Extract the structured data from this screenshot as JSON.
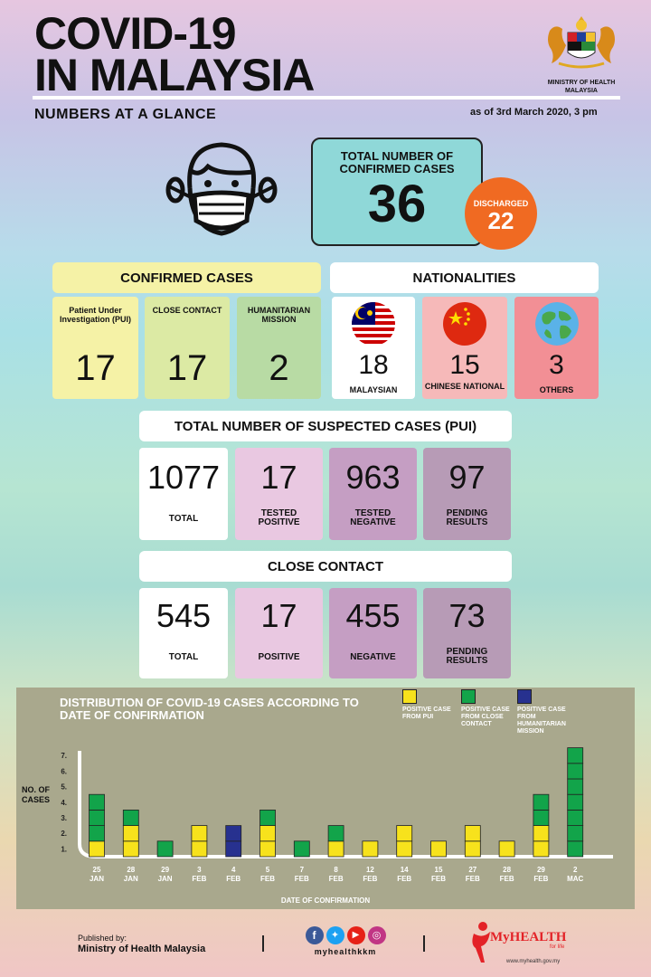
{
  "header": {
    "title_line1": "COVID-19",
    "title_line2": "IN MALAYSIA",
    "subtitle": "NUMBERS AT A GLANCE",
    "as_of": "as of 3rd March 2020, 3 pm",
    "crest_label_1": "MINISTRY OF HEALTH",
    "crest_label_2": "MALAYSIA"
  },
  "total": {
    "label": "TOTAL NUMBER OF CONFIRMED CASES",
    "value": "36",
    "discharged_label": "DISCHARGED",
    "discharged_value": "22"
  },
  "confirmed": {
    "header": "CONFIRMED CASES",
    "cards": [
      {
        "label": "Patient Under Investigation (PUI)",
        "value": "17",
        "color": "#f5f2a6"
      },
      {
        "label": "CLOSE CONTACT",
        "value": "17",
        "color": "#dceaa4"
      },
      {
        "label": "HUMANITARIAN MISSION",
        "value": "2",
        "color": "#b8dba4"
      }
    ]
  },
  "nationalities": {
    "header": "NATIONALITIES",
    "cards": [
      {
        "label": "MALAYSIAN",
        "value": "18",
        "color": "#ffffff",
        "icon": "malaysia-flag-icon"
      },
      {
        "label": "CHINESE NATIONAL",
        "value": "15",
        "color": "#f6b9b9",
        "icon": "china-flag-icon"
      },
      {
        "label": "OTHERS",
        "value": "3",
        "color": "#f28f95",
        "icon": "globe-icon"
      }
    ]
  },
  "suspected": {
    "header": "TOTAL NUMBER OF SUSPECTED CASES (PUI)",
    "cards": [
      {
        "value": "1077",
        "label": "TOTAL",
        "color": "#ffffff"
      },
      {
        "value": "17",
        "label": "TESTED POSITIVE",
        "color": "#e9c8e1"
      },
      {
        "value": "963",
        "label": "TESTED NEGATIVE",
        "color": "#c59ec3"
      },
      {
        "value": "97",
        "label": "PENDING RESULTS",
        "color": "#b79bb6"
      }
    ]
  },
  "close_contact": {
    "header": "CLOSE CONTACT",
    "cards": [
      {
        "value": "545",
        "label": "TOTAL",
        "color": "#ffffff"
      },
      {
        "value": "17",
        "label": "POSITIVE",
        "color": "#e9c8e1"
      },
      {
        "value": "455",
        "label": "NEGATIVE",
        "color": "#c59ec3"
      },
      {
        "value": "73",
        "label": "PENDING RESULTS",
        "color": "#b79bb6"
      }
    ]
  },
  "chart_data": {
    "type": "bar",
    "title": "DISTRIBUTION OF COVID-19 CASES ACCORDING TO DATE OF CONFIRMATION",
    "xlabel": "DATE OF CONFIRMATION",
    "ylabel": "NO. OF CASES",
    "yticks": [
      "1.",
      "2.",
      "3.",
      "4.",
      "5.",
      "6.",
      "7."
    ],
    "ylim": [
      0,
      7
    ],
    "categories": [
      [
        "25",
        "JAN"
      ],
      [
        "28",
        "JAN"
      ],
      [
        "29",
        "JAN"
      ],
      [
        "3",
        "FEB"
      ],
      [
        "4",
        "FEB"
      ],
      [
        "5",
        "FEB"
      ],
      [
        "7",
        "FEB"
      ],
      [
        "8",
        "FEB"
      ],
      [
        "12",
        "FEB"
      ],
      [
        "14",
        "FEB"
      ],
      [
        "15",
        "FEB"
      ],
      [
        "27",
        "FEB"
      ],
      [
        "28",
        "FEB"
      ],
      [
        "29",
        "FEB"
      ],
      [
        "2",
        "MAC"
      ]
    ],
    "series": [
      {
        "name": "POSITIVE CASE FROM PUI",
        "color": "#f7e21c",
        "values": [
          1,
          2,
          0,
          2,
          0,
          2,
          0,
          1,
          1,
          2,
          1,
          2,
          1,
          2,
          0
        ]
      },
      {
        "name": "POSITIVE CASE FROM CLOSE CONTACT",
        "color": "#12a44a",
        "values": [
          3,
          1,
          1,
          0,
          0,
          1,
          1,
          1,
          0,
          0,
          0,
          0,
          0,
          2,
          7
        ]
      },
      {
        "name": "POSITIVE CASE FROM HUMANITARIAN MISSION",
        "color": "#27318f",
        "values": [
          0,
          0,
          0,
          0,
          2,
          0,
          0,
          0,
          0,
          0,
          0,
          0,
          0,
          0,
          0
        ]
      }
    ]
  },
  "footer": {
    "published_by": "Published by:",
    "ministry": "Ministry of Health Malaysia",
    "social_handle": "myhealthkkm",
    "myhealth_logo": "MyHEALTH",
    "myhealth_tagline": "for life",
    "myhealth_url": "www.myhealth.gov.my"
  }
}
